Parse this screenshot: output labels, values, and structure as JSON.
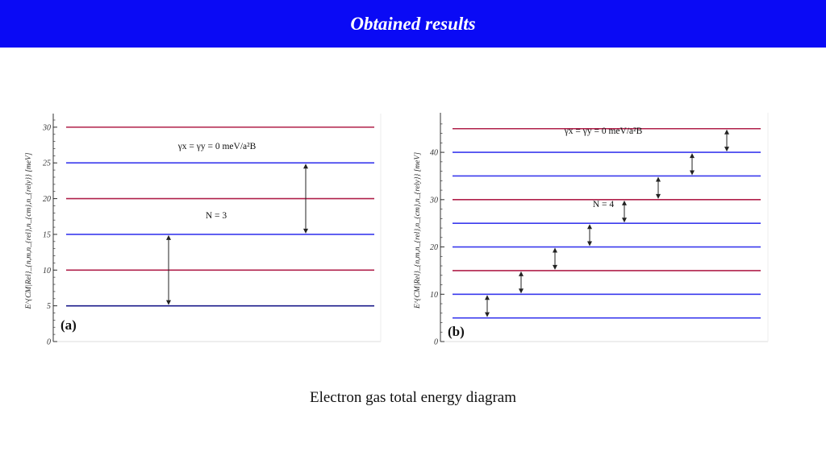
{
  "header": {
    "title": "Obtained results"
  },
  "caption": "Electron gas total energy diagram",
  "colors": {
    "header_bg": "#0a0af5",
    "level_odd": "#b0204a",
    "level_even": "#3a3aee",
    "ground_level": "#1a1a8a",
    "axis": "#333333",
    "arrow": "#222222"
  },
  "chart_data": [
    {
      "type": "energy-level-diagram",
      "panel_label": "(a)",
      "ylabel": "E^{CM|Rel}_{n,m,n_{rel},n_{cm},n_{rely}} [meV]",
      "ylim": [
        0,
        31
      ],
      "yticks": [
        0,
        5,
        10,
        15,
        20,
        25,
        30
      ],
      "annotation": "γx = γy = 0 meV/a²B",
      "n_label": "N = 3",
      "levels": [
        {
          "energy": 5,
          "color_key": "ground_level"
        },
        {
          "energy": 10,
          "color_key": "level_odd"
        },
        {
          "energy": 15,
          "color_key": "level_even"
        },
        {
          "energy": 20,
          "color_key": "level_odd"
        },
        {
          "energy": 25,
          "color_key": "level_even"
        },
        {
          "energy": 30,
          "color_key": "level_odd"
        }
      ],
      "arrows": [
        {
          "from": 5,
          "to": 15
        },
        {
          "from": 15,
          "to": 25
        }
      ]
    },
    {
      "type": "energy-level-diagram",
      "panel_label": "(b)",
      "ylabel": "E^{CM|Rel}_{n,m,n_{rel},n_{cm},n_{rely}} [meV]",
      "ylim": [
        0,
        47
      ],
      "yticks": [
        0,
        10,
        20,
        30,
        40
      ],
      "annotation": "γx = γy = 0 meV/a²B",
      "n_label": "N = 4",
      "levels": [
        {
          "energy": 5,
          "color_key": "level_even"
        },
        {
          "energy": 10,
          "color_key": "level_even"
        },
        {
          "energy": 15,
          "color_key": "level_odd"
        },
        {
          "energy": 20,
          "color_key": "level_even"
        },
        {
          "energy": 25,
          "color_key": "level_even"
        },
        {
          "energy": 30,
          "color_key": "level_odd"
        },
        {
          "energy": 35,
          "color_key": "level_even"
        },
        {
          "energy": 40,
          "color_key": "level_even"
        },
        {
          "energy": 45,
          "color_key": "level_odd"
        }
      ],
      "arrows": [
        {
          "from": 5,
          "to": 10
        },
        {
          "from": 10,
          "to": 15
        },
        {
          "from": 15,
          "to": 20
        },
        {
          "from": 20,
          "to": 25
        },
        {
          "from": 25,
          "to": 30
        },
        {
          "from": 30,
          "to": 35
        },
        {
          "from": 35,
          "to": 40
        },
        {
          "from": 40,
          "to": 45
        }
      ]
    }
  ]
}
